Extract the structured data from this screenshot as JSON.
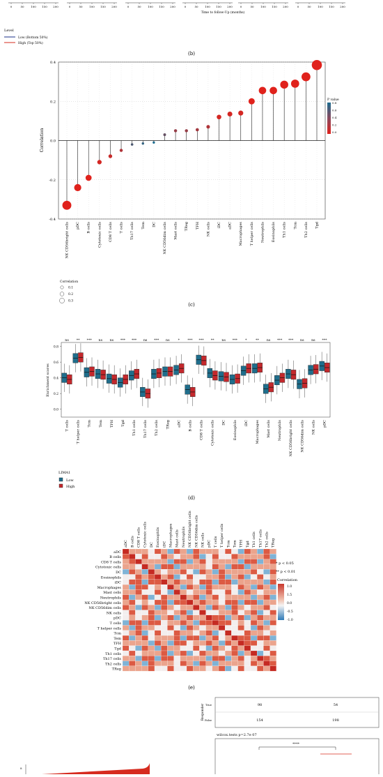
{
  "panel_a_tail": {
    "xlabel": "Time to follow-Up (months)",
    "ticks": [
      "0",
      "50",
      "100",
      "150",
      "200"
    ],
    "legend_title": "Level",
    "legend": [
      {
        "name": "Low (Bottom 50%)",
        "color": "#1a2f8a"
      },
      {
        "name": "High (Top 50%)",
        "color": "#d62b1f"
      }
    ]
  },
  "labels": {
    "b": "(b)",
    "c": "(c)",
    "d": "(d)",
    "e": "(e)"
  },
  "chart_data": [
    {
      "type": "scatter",
      "panel": "b",
      "ylabel": "Correlation",
      "ylim": [
        -0.4,
        0.4
      ],
      "yticks": [
        "-0.4",
        "-0.2",
        "0.0",
        "0.2",
        "0.4"
      ],
      "categories": [
        "NK CD56bright cells",
        "pDC",
        "B cells",
        "Cytotoxic cells",
        "CD8 T cells",
        "T cells",
        "Th17 cells",
        "Tem",
        "DC",
        "NK CD56dim cells",
        "Mast cells",
        "TReg",
        "TFH",
        "NK cells",
        "iDC",
        "aDC",
        "Macrophages",
        "T helper cells",
        "Neutrophils",
        "Eosinophils",
        "Th1 cells",
        "Tcm",
        "Th2 cells",
        "Tgd"
      ],
      "values": [
        -0.33,
        -0.24,
        -0.19,
        -0.11,
        -0.08,
        -0.05,
        -0.02,
        -0.015,
        -0.01,
        0.03,
        0.05,
        0.05,
        0.055,
        0.07,
        0.12,
        0.135,
        0.14,
        0.2,
        0.255,
        0.255,
        0.285,
        0.29,
        0.325,
        0.385
      ],
      "pvalues": [
        0.0,
        0.0,
        0.0,
        0.05,
        0.1,
        0.2,
        0.6,
        0.7,
        0.8,
        0.5,
        0.3,
        0.3,
        0.25,
        0.2,
        0.05,
        0.05,
        0.05,
        0.0,
        0.0,
        0.0,
        0.0,
        0.0,
        0.0,
        0.0
      ],
      "pvalue_legend": {
        "title": "P value",
        "ticks": [
          "0.8",
          "0.6",
          "0.4",
          "0.2",
          "0.0"
        ]
      },
      "size_legend": {
        "title": "Correlation",
        "items": [
          "0.1",
          "0.2",
          "0.3"
        ]
      }
    },
    {
      "type": "box",
      "panel": "d",
      "ylabel": "Enrichment scores",
      "ylim": [
        -0.1,
        0.85
      ],
      "yticks": [
        "0.0",
        "0.2",
        "0.4",
        "0.6",
        "0.8"
      ],
      "categories": [
        "T cells",
        "T helper cells",
        "Tcm",
        "Tem",
        "TFH",
        "Tgd",
        "Th1 cells",
        "Th17 cells",
        "Th2 cells",
        "TReg",
        "aDC",
        "B cells",
        "CD8 T cells",
        "Cytotoxic cells",
        "DC",
        "Eosinophils",
        "iDC",
        "Macrophages",
        "Mast cells",
        "Neutrophils",
        "NK CD56bright cells",
        "NK CD56dim cells",
        "NK cells",
        "pDC"
      ],
      "significance": [
        "ns",
        "**",
        "***",
        "ns",
        "ns",
        "***",
        "***",
        "ns",
        "***",
        "ns",
        "*",
        "***",
        "***",
        "**",
        "ns",
        "***",
        "*",
        "**",
        "ns",
        "***",
        "***",
        "ns",
        "ns",
        "***"
      ],
      "low_median": [
        0.4,
        0.65,
        0.47,
        0.45,
        0.39,
        0.34,
        0.43,
        0.22,
        0.45,
        0.48,
        0.5,
        0.25,
        0.63,
        0.46,
        0.42,
        0.38,
        0.49,
        0.52,
        0.26,
        0.37,
        0.45,
        0.32,
        0.5,
        0.55
      ],
      "high_median": [
        0.38,
        0.66,
        0.48,
        0.44,
        0.38,
        0.38,
        0.45,
        0.2,
        0.46,
        0.48,
        0.52,
        0.22,
        0.62,
        0.43,
        0.41,
        0.39,
        0.52,
        0.53,
        0.28,
        0.4,
        0.44,
        0.33,
        0.51,
        0.53
      ],
      "legend_title": "LIMA1",
      "series": [
        {
          "name": "Low",
          "color": "#1f6e8c"
        },
        {
          "name": "High",
          "color": "#c4282c"
        }
      ]
    },
    {
      "type": "heatmap",
      "panel": "e",
      "columns": [
        "aDC",
        "B cells",
        "CD8 T cells",
        "Cytotoxic cells",
        "DC",
        "Eosinophils",
        "iDC",
        "Macrophages",
        "Mast cells",
        "Neutrophils",
        "NK CD56bright cells",
        "NK CD56dim cells",
        "NK cells",
        "pDC",
        "T cells",
        "T helper cells",
        "Tcm",
        "Tem",
        "TFH",
        "Tgd",
        "Th1 cells",
        "Th17 cells",
        "Th2 cells",
        "TReg"
      ],
      "rows": [
        "aDC",
        "B cells",
        "CD8 T cells",
        "Cytotoxic cells",
        "DC",
        "Eosinophils",
        "iDC",
        "Macrophages",
        "Mast cells",
        "Neutrophils",
        "NK CD56bright cells",
        "NK CD56dim cells",
        "NK cells",
        "pDC",
        "T cells",
        "T helper cells",
        "Tcm",
        "Tem",
        "TFH",
        "Tgd",
        "Th1 cells",
        "Th17 cells",
        "Th2 cells",
        "TReg"
      ],
      "legend_notes": [
        "* p < 0.05",
        "** p < 0.01"
      ],
      "legend_title": "Correlation",
      "legend_ticks": [
        "1.0",
        "1.5",
        "0.0",
        "-0.5",
        "-1.0"
      ]
    },
    {
      "type": "table",
      "panel": "f",
      "ylabel": "Responder",
      "rows": [
        {
          "label": "True",
          "values": [
            "98",
            "54"
          ]
        },
        {
          "label": "False",
          "values": [
            "154",
            "198"
          ]
        }
      ],
      "test_label": "wilcox.tests p=2.7e 07",
      "sig": "****"
    }
  ]
}
